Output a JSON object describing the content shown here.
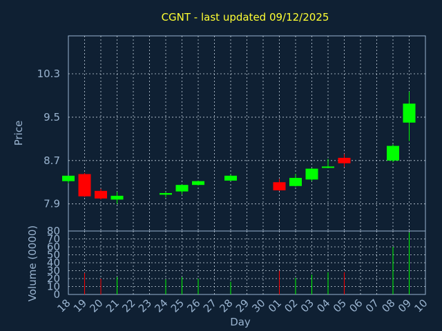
{
  "chart_data": [
    {
      "type": "candlestick",
      "title": "CGNT - last updated 09/12/2025",
      "ylabel": "Price",
      "ylim": [
        7.4,
        11.0
      ],
      "yticks": [
        "7.9",
        "8.7",
        "9.5",
        "10.3"
      ],
      "xlabel": "",
      "grid": true,
      "colors": {
        "up": "#00ff00",
        "down": "#ff0000",
        "wick_up": "#00ff00",
        "wick_down": "#ff0000"
      },
      "candles": [
        {
          "day": "18",
          "open": 8.32,
          "high": 8.42,
          "low": 8.28,
          "close": 8.42
        },
        {
          "day": "19",
          "open": 8.45,
          "high": 8.47,
          "low": 8.03,
          "close": 8.04
        },
        {
          "day": "20",
          "open": 8.14,
          "high": 8.18,
          "low": 7.98,
          "close": 8.0
        },
        {
          "day": "21",
          "open": 7.98,
          "high": 8.12,
          "low": 7.9,
          "close": 8.05
        },
        {
          "day": "24",
          "open": 8.07,
          "high": 8.12,
          "low": 8.02,
          "close": 8.1
        },
        {
          "day": "25",
          "open": 8.13,
          "high": 8.26,
          "low": 8.08,
          "close": 8.25
        },
        {
          "day": "26",
          "open": 8.25,
          "high": 8.33,
          "low": 8.24,
          "close": 8.32
        },
        {
          "day": "28",
          "open": 8.33,
          "high": 8.44,
          "low": 8.32,
          "close": 8.42
        },
        {
          "day": "01",
          "open": 8.3,
          "high": 8.36,
          "low": 8.14,
          "close": 8.15
        },
        {
          "day": "02",
          "open": 8.23,
          "high": 8.45,
          "low": 8.22,
          "close": 8.38
        },
        {
          "day": "03",
          "open": 8.35,
          "high": 8.56,
          "low": 8.32,
          "close": 8.55
        },
        {
          "day": "04",
          "open": 8.57,
          "high": 8.73,
          "low": 8.56,
          "close": 8.59
        },
        {
          "day": "05",
          "open": 8.75,
          "high": 8.82,
          "low": 8.58,
          "close": 8.65
        },
        {
          "day": "08",
          "open": 8.7,
          "high": 9.0,
          "low": 8.67,
          "close": 8.97
        },
        {
          "day": "09",
          "open": 9.4,
          "high": 9.97,
          "low": 9.06,
          "close": 9.75
        }
      ]
    },
    {
      "type": "bar",
      "ylabel": "Volume (0000)",
      "ylim": [
        0,
        80
      ],
      "yticks": [
        "0",
        "10",
        "20",
        "30",
        "40",
        "50",
        "60",
        "70",
        "80"
      ],
      "xlabel": "Day",
      "grid": true,
      "categories": [
        "18",
        "19",
        "20",
        "21",
        "22",
        "23",
        "24",
        "25",
        "26",
        "27",
        "28",
        "29",
        "30",
        "01",
        "02",
        "03",
        "04",
        "05",
        "06",
        "07",
        "08",
        "09",
        "10"
      ],
      "bars": [
        {
          "day": "19",
          "value": 27,
          "color": "#ff0000"
        },
        {
          "day": "20",
          "value": 20,
          "color": "#ff0000"
        },
        {
          "day": "21",
          "value": 22,
          "color": "#00ff00"
        },
        {
          "day": "24",
          "value": 19,
          "color": "#00ff00"
        },
        {
          "day": "25",
          "value": 22,
          "color": "#00ff00"
        },
        {
          "day": "26",
          "value": 20,
          "color": "#00ff00"
        },
        {
          "day": "28",
          "value": 16,
          "color": "#00ff00"
        },
        {
          "day": "01",
          "value": 30,
          "color": "#ff0000"
        },
        {
          "day": "02",
          "value": 21,
          "color": "#00ff00"
        },
        {
          "day": "03",
          "value": 25,
          "color": "#00ff00"
        },
        {
          "day": "04",
          "value": 28,
          "color": "#00ff00"
        },
        {
          "day": "05",
          "value": 28,
          "color": "#ff0000"
        },
        {
          "day": "08",
          "value": 60,
          "color": "#00ff00"
        },
        {
          "day": "09",
          "value": 78,
          "color": "#00ff00"
        }
      ]
    }
  ]
}
